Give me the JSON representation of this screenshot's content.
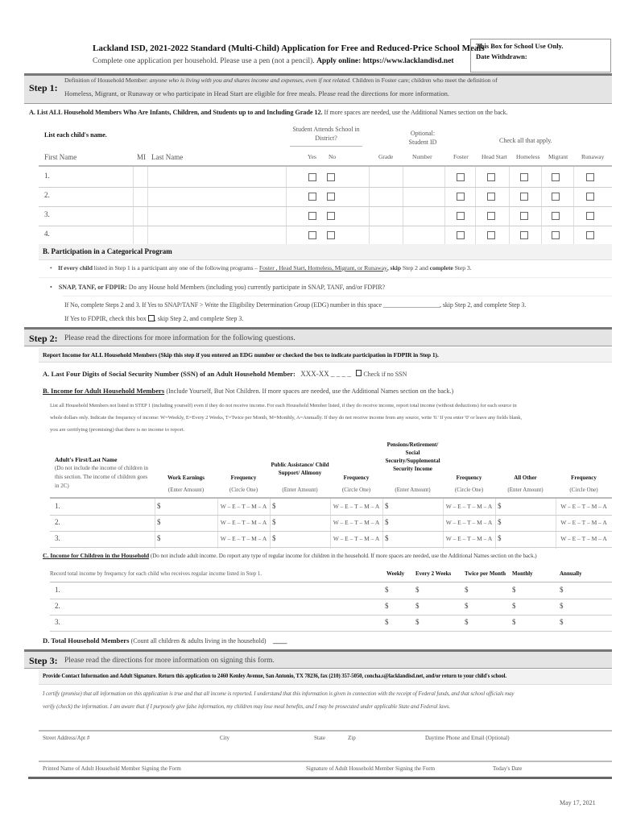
{
  "header": {
    "title": "Lackland ISD, 2021-2022 Standard (Multi-Child) Application for Free and Reduced-Price School Meals",
    "subtitle": "Complete one application per household. Please use a pen (not a pencil).",
    "apply_online": "Apply online: https://www.lacklandisd.net",
    "school_box_line1": "This Box for School Use Only.",
    "school_box_line2": "Date Withdrawn:"
  },
  "step1": {
    "label": "Step 1:",
    "def_lead": "Definition of Household Member:",
    "def_italic": "anyone who is living with you and shares income and expenses, even if not related.",
    "def_rest": "Children in Foster care; children who meet the definition of",
    "def_line2": "Homeless, Migrant, or Runaway or who participate in Head Start are eligible for free meals. Please read the directions for more information.",
    "sectionA_bold": "A. List ALL Household Members Who Are Infants, Children, and Students up to and Including Grade 12.",
    "sectionA_rest": "If more spaces are needed, use the Additional Names section on the back.",
    "list_label": "List each child's name.",
    "attends_label": "Student Attends School in District?",
    "optional_label": "Optional: Student ID",
    "check_label": "Check all that apply.",
    "columns": {
      "first": "First Name",
      "mi": "MI",
      "last": "Last Name",
      "yes": "Yes",
      "no": "No",
      "grade": "Grade",
      "number": "Number",
      "foster": "Foster",
      "headstart": "Head Start",
      "homeless": "Homeless",
      "migrant": "Migrant",
      "runaway": "Runaway"
    },
    "rows": [
      "1.",
      "2.",
      "3.",
      "4."
    ]
  },
  "sectionB": {
    "title": "B. Participation in a Categorical Program",
    "bullet1_bold": "If every child",
    "bullet1_text": "listed in Step 1 is a participant any one of the following programs –",
    "bullet1_programs": "Foster , Head Start, Homeless, Migrant, or Runaway",
    "bullet1_skip": ", skip",
    "bullet1_mid": "Step 2 and",
    "bullet1_complete": "complete",
    "bullet1_end": "Step 3.",
    "bullet2_bold": "SNAP, TANF, or FDPIR:",
    "bullet2_text": "Do any House hold Members (including you) currently participate in SNAP, TANF, and/or FDPIR?",
    "line3": "If No, complete Steps 2 and 3. If Yes to SNAP/TANF > Write the Eligibility Determination Group (EDG) number in this space __________________, skip Step 2, and complete Step 3.",
    "line4a": "If Yes to FDPIR, check this box",
    "line4b": ", skip Step 2, and complete Step 3."
  },
  "step2": {
    "label": "Step 2:",
    "text": "Please read the directions for more information for the following questions.",
    "report": "Report Income for ALL Household Members (Skip this step if you entered an EDG number or checked the box to indicate participation in FDPIR in Step 1).",
    "ssn_label": "A. Last Four Digits of Social Security Number (SSN) of an Adult Household Member:",
    "ssn_value": "XXX-XX  _  _  _  _",
    "ssn_check": "Check if no SSN",
    "b_title": "B. Income for Adult Household Members",
    "b_rest": "(Include Yourself, But Not Children. If more spaces are needed, use the Additional Names section on the back.)",
    "para1": "List all Household Members not listed in STEP 1 (including yourself) even if they do not receive income. For each Household Member listed, if they do receive income, report total income (without deductions) for each source in",
    "para2": "whole dollars only. Indicate the frequency of income: W=Weekly, E=Every 2 Weeks, T=Twice per Month, M=Monthly, A=Annually. If they do not receive income from any source, write '0.' If you enter '0' or leave any fields blank,",
    "para3": "you are certifying (promising) that there is no income to report.",
    "adult_name": "Adult's First/Last Name",
    "adult_note": "(Do not include the income of children in this section. The income of children goes in 2C)",
    "income_cols": [
      {
        "title": "Work Earnings",
        "sub": "(Enter Amount)"
      },
      {
        "title": "Frequency",
        "sub": "(Circle One)"
      },
      {
        "title": "Public Assistance/ Child Support/ Alimony",
        "sub": "(Enter Amount)"
      },
      {
        "title": "Frequency",
        "sub": "(Circle One)"
      },
      {
        "title": "Pensions/Retirement/ Social Security/Supplemental Security Income",
        "sub": "(Enter Amount)"
      },
      {
        "title": "Frequency",
        "sub": "(Circle One)"
      },
      {
        "title": "All Other",
        "sub": "(Enter Amount)"
      },
      {
        "title": "Frequency",
        "sub": "(Circle One)"
      }
    ],
    "dollar": "$",
    "freq": "W – E – T – M – A",
    "adult_rows": [
      "1.",
      "2.",
      "3."
    ],
    "c_title": "C. Income for Children in the Household",
    "c_rest": "(Do not include adult income. Do report any type of regular income for children in the household. If more spaces are needed, use the Additional Names section on the back.)",
    "c_record": "Record total income by frequency for each child who receives regular income listed in Step 1.",
    "c_cols": [
      "Weekly",
      "Every 2 Weeks",
      "Twice per Month",
      "Monthly",
      "Annually"
    ],
    "child_rows": [
      "1.",
      "2.",
      "3."
    ],
    "d_label": "D. Total Household Members",
    "d_rest": "(Count all children & adults living in the household)",
    "d_blank": "____"
  },
  "step3": {
    "label": "Step 3:",
    "text": "Please read the directions for more information on signing this form.",
    "provide": "Provide Contact Information and Adult Signature. Return this application to  2460 Kenley Avenue, San Antonio, TX 78236, fax (210) 357-5050, concha.s@lacklandisd.net, and/or return to your child's school.",
    "certify1": "I certify (promise) that all information on this application is true and that all income is reported. I understand that this information is given in connection with the receipt of Federal funds, and that school officials may",
    "certify2": "verify (check) the information. I am aware that if I purposely give false information, my children may lose meal benefits, and I may be prosecuted under applicable State and Federal laws.",
    "street": "Street Address/Apt #",
    "city": "City",
    "state": "State",
    "zip": "Zip",
    "phone": "Daytime Phone and Email (Optional)",
    "printed": "Printed Name of Adult Household Member Signing the Form",
    "signature": "Signature of Adult Household Member Signing the Form",
    "today": "Today's Date"
  },
  "footer": {
    "date": "May 17, 2021"
  }
}
